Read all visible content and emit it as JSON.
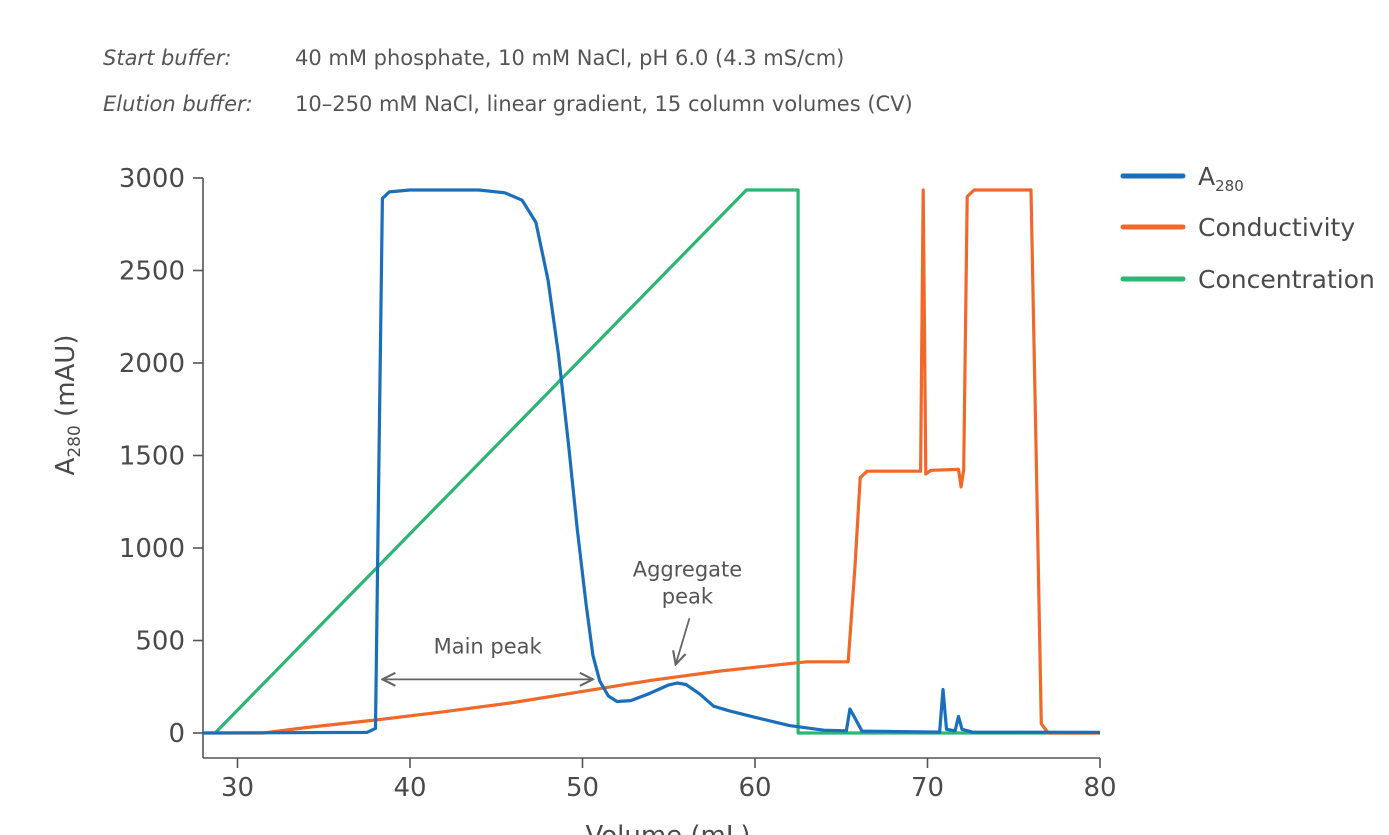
{
  "header": {
    "start_label": "Start buffer:",
    "start_value": "40 mM phosphate, 10 mM NaCl, pH 6.0 (4.3 mS/cm)",
    "elution_label": "Elution buffer:",
    "elution_value": "10–250 mM NaCl, linear gradient, 15 column volumes (CV)"
  },
  "chart_data": {
    "type": "line",
    "title": "",
    "xlabel": "Volume (mL)",
    "ylabel_main": "A",
    "ylabel_sub": "280",
    "ylabel_unit": " (mAU)",
    "xlim": [
      28,
      80
    ],
    "ylim": [
      0,
      3000
    ],
    "x_ticks": [
      30,
      40,
      50,
      60,
      70,
      80
    ],
    "y_ticks": [
      0,
      500,
      1000,
      1500,
      2000,
      2500,
      3000
    ],
    "legend_position": "top-right",
    "grid": false,
    "series": [
      {
        "name": "A",
        "name_sub": "280",
        "color": "#1a6fba",
        "points": [
          [
            28,
            0
          ],
          [
            37.5,
            3
          ],
          [
            38.0,
            25
          ],
          [
            38.2,
            1500
          ],
          [
            38.4,
            2890
          ],
          [
            38.8,
            2925
          ],
          [
            40,
            2935
          ],
          [
            44,
            2935
          ],
          [
            45.5,
            2920
          ],
          [
            46.5,
            2880
          ],
          [
            47.3,
            2760
          ],
          [
            48,
            2450
          ],
          [
            48.6,
            2050
          ],
          [
            49.2,
            1550
          ],
          [
            49.7,
            1100
          ],
          [
            50.2,
            700
          ],
          [
            50.6,
            420
          ],
          [
            51,
            280
          ],
          [
            51.5,
            200
          ],
          [
            52,
            170
          ],
          [
            52.8,
            175
          ],
          [
            53.8,
            210
          ],
          [
            55,
            260
          ],
          [
            55.5,
            270
          ],
          [
            56,
            262
          ],
          [
            56.8,
            210
          ],
          [
            57.6,
            145
          ],
          [
            58.5,
            120
          ],
          [
            60,
            85
          ],
          [
            62,
            40
          ],
          [
            64,
            15
          ],
          [
            65.3,
            12
          ],
          [
            65.5,
            130
          ],
          [
            65.8,
            80
          ],
          [
            66.2,
            10
          ],
          [
            70.7,
            5
          ],
          [
            70.9,
            235
          ],
          [
            71.1,
            20
          ],
          [
            71.6,
            12
          ],
          [
            71.8,
            90
          ],
          [
            72.0,
            20
          ],
          [
            72.6,
            5
          ],
          [
            80,
            3
          ]
        ]
      },
      {
        "name": "Conductivity",
        "name_sub": "",
        "color": "#f0692a",
        "points": [
          [
            28,
            0
          ],
          [
            31.5,
            0
          ],
          [
            34,
            30
          ],
          [
            38,
            70
          ],
          [
            42,
            115
          ],
          [
            46,
            165
          ],
          [
            50,
            225
          ],
          [
            54,
            285
          ],
          [
            58,
            335
          ],
          [
            62,
            375
          ],
          [
            63,
            385
          ],
          [
            65.4,
            385
          ],
          [
            65.8,
            900
          ],
          [
            66.1,
            1380
          ],
          [
            66.5,
            1415
          ],
          [
            69.6,
            1415
          ],
          [
            69.75,
            2935
          ],
          [
            69.9,
            1400
          ],
          [
            70.2,
            1420
          ],
          [
            71.8,
            1425
          ],
          [
            71.95,
            1330
          ],
          [
            72.1,
            1425
          ],
          [
            72.3,
            2900
          ],
          [
            72.7,
            2935
          ],
          [
            76,
            2935
          ],
          [
            76.3,
            1500
          ],
          [
            76.6,
            50
          ],
          [
            77,
            0
          ],
          [
            80,
            0
          ]
        ]
      },
      {
        "name": "Concentration",
        "name_sub": "",
        "color": "#2cb573",
        "points": [
          [
            28.7,
            0
          ],
          [
            59.5,
            2935
          ],
          [
            62.5,
            2935
          ],
          [
            62.5,
            0
          ],
          [
            80,
            0
          ]
        ]
      }
    ],
    "annotations": [
      {
        "text_line1": "Main peak",
        "text_line2": "",
        "arrow": "double",
        "from": [
          38.4,
          290
        ],
        "to": [
          50.6,
          290
        ]
      },
      {
        "text_line1": "Aggregate",
        "text_line2": "peak",
        "arrow": "single",
        "from": [
          56.2,
          620
        ],
        "to": [
          55.4,
          370
        ]
      }
    ]
  }
}
